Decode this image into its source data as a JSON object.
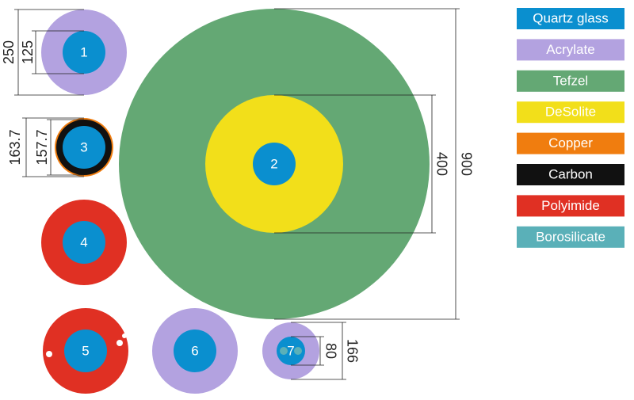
{
  "legend": [
    {
      "label": "Quartz glass",
      "color": "#0a8fcf"
    },
    {
      "label": "Acrylate",
      "color": "#b3a2e0"
    },
    {
      "label": "Tefzel",
      "color": "#64a874"
    },
    {
      "label": "DeSolite",
      "color": "#f2df1a"
    },
    {
      "label": "Copper",
      "color": "#f07d0f"
    },
    {
      "label": "Carbon",
      "color": "#111111"
    },
    {
      "label": "Polyimide",
      "color": "#e03023"
    },
    {
      "label": "Borosilicate",
      "color": "#5ab0b8"
    }
  ],
  "fibers": [
    "1",
    "2",
    "3",
    "4",
    "5",
    "6",
    "7"
  ],
  "dimensions": {
    "fiber1_outer": "250",
    "fiber1_inner": "125",
    "fiber3_outer": "163.7",
    "fiber3_inner": "157.7",
    "fiber2_inner": "400",
    "fiber2_outer": "900",
    "fiber7_inner": "80",
    "fiber7_outer": "166"
  }
}
